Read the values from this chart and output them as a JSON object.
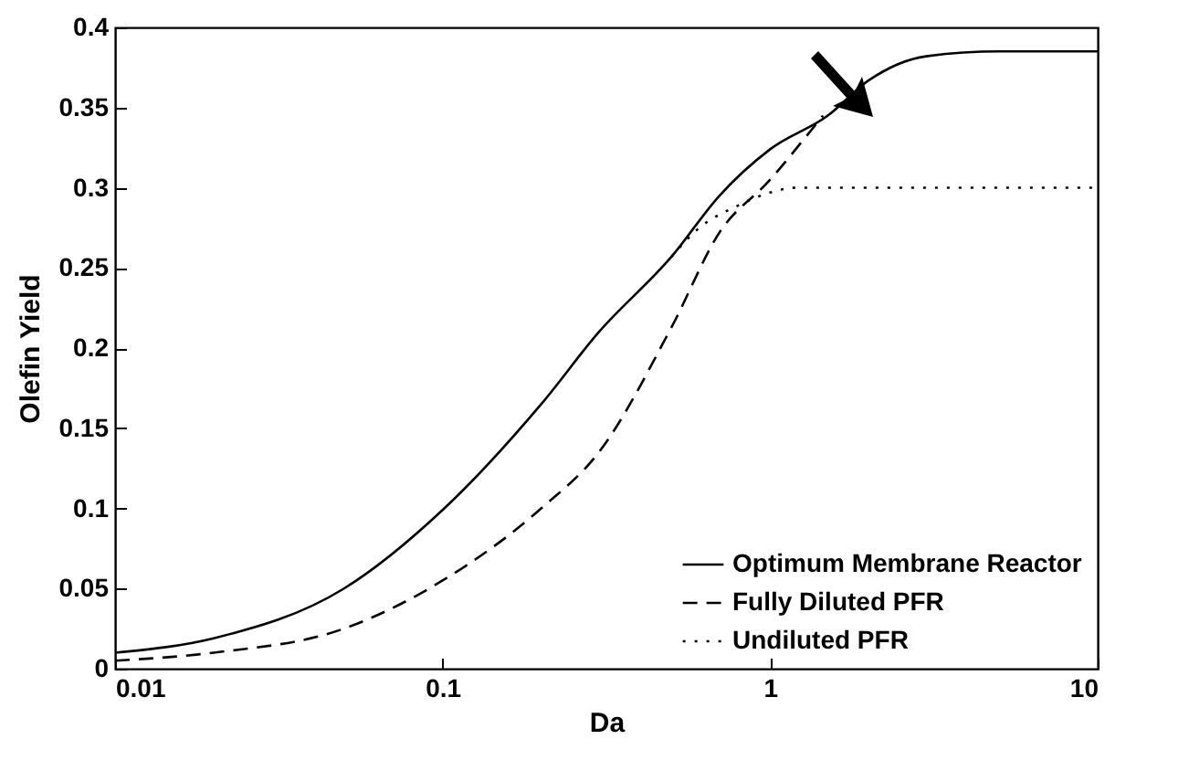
{
  "chart_data": {
    "type": "line",
    "xlabel": "Da",
    "ylabel": "Olefin Yield",
    "log": "x",
    "xlim": [
      0.01,
      10
    ],
    "xticks": [
      0.01,
      0.1,
      1,
      10
    ],
    "ylim": [
      0,
      0.4
    ],
    "yticks": [
      0,
      0.05,
      0.1,
      0.15,
      0.2,
      0.25,
      0.3,
      0.35,
      0.4
    ],
    "grid": false,
    "legend": "bottom right",
    "series": [
      {
        "name": "Optimum Membrane Reactor",
        "color": "#000000",
        "line_style": "solid",
        "x": [
          0.01,
          0.02,
          0.05,
          0.1,
          0.2,
          0.3,
          0.5,
          0.7,
          1,
          1.5,
          2,
          3,
          5,
          10
        ],
        "values": [
          0.01,
          0.019,
          0.05,
          0.099,
          0.165,
          0.21,
          0.257,
          0.295,
          0.324,
          0.345,
          0.367,
          0.382,
          0.385,
          0.385
        ]
      },
      {
        "name": "Fully Diluted PFR",
        "color": "#000000",
        "line_style": "dashed",
        "x": [
          0.01,
          0.02,
          0.05,
          0.1,
          0.2,
          0.3,
          0.5,
          0.7,
          1,
          1.3,
          1.45
        ],
        "values": [
          0.005,
          0.01,
          0.025,
          0.055,
          0.1,
          0.135,
          0.213,
          0.272,
          0.305,
          0.333,
          0.345
        ]
      },
      {
        "name": "Undiluted PFR",
        "color": "#000000",
        "line_style": "dotted",
        "x": [
          0.5,
          0.6,
          0.8,
          1,
          1.2,
          2,
          5,
          10
        ],
        "values": [
          0.257,
          0.274,
          0.289,
          0.297,
          0.3,
          0.3,
          0.3,
          0.3
        ]
      }
    ]
  }
}
